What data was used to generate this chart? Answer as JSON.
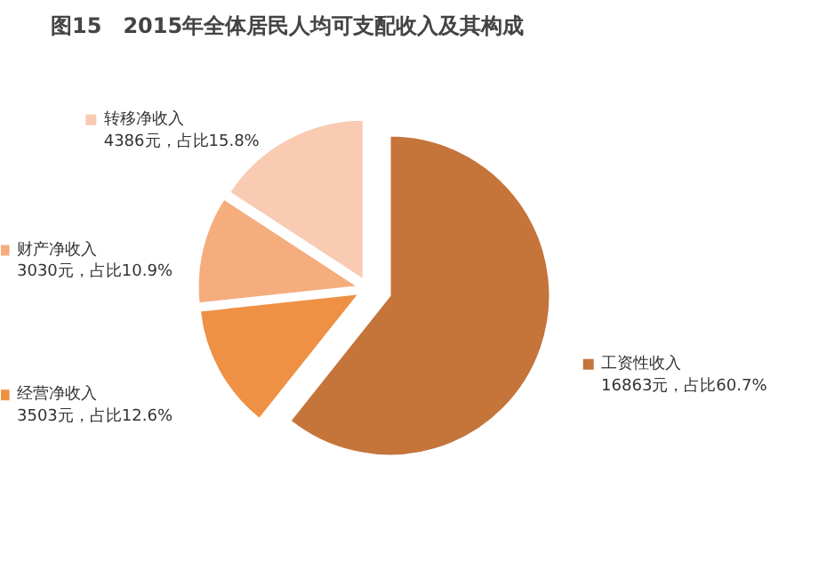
{
  "chart_data": {
    "type": "pie",
    "title": "图15　2015年全体居民人均可支配收入及其构成",
    "categories": [
      "工资性收入",
      "经营净收入",
      "财产净收入",
      "转移净收入"
    ],
    "values": [
      16863,
      3503,
      3030,
      4386
    ],
    "legend": "left",
    "colors": [
      "#c5743a",
      "#ee9144",
      "#f5ad7e",
      "#f8cbb2"
    ],
    "value_labels": [
      "16863元，占比60.7%",
      "3503元，占比12.6%",
      "3030元，占比10.9%",
      "4386元，占比15.8%"
    ]
  }
}
